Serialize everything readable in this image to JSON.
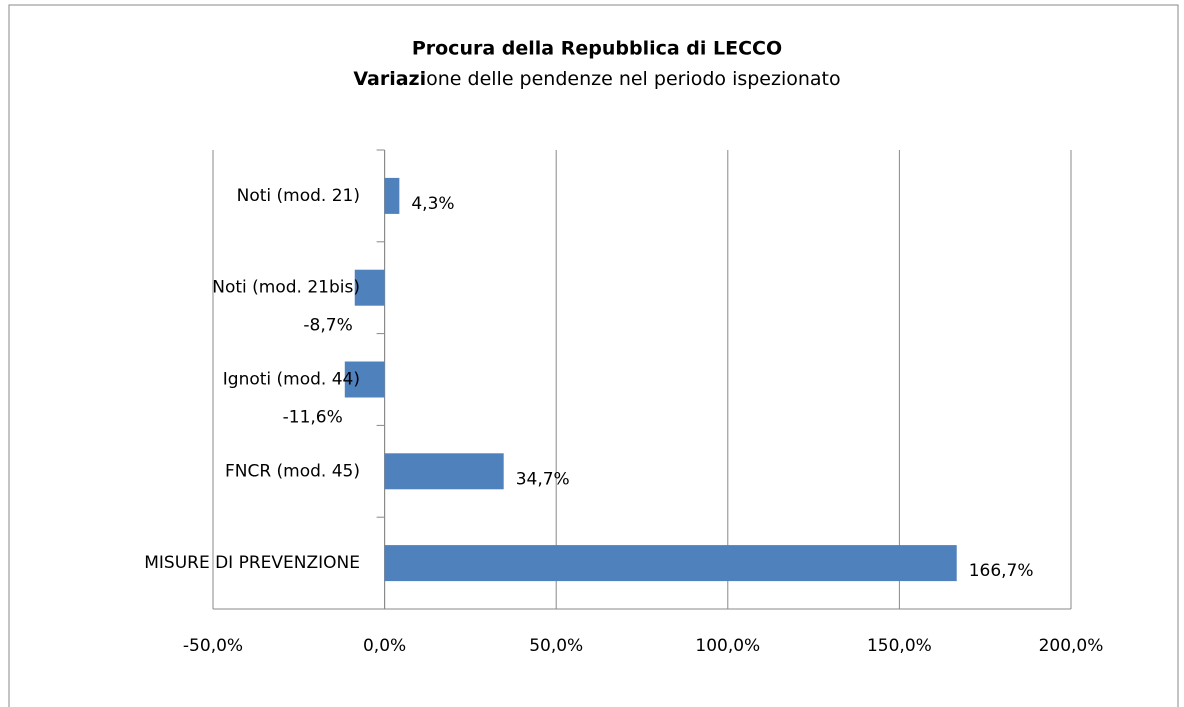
{
  "chart_data": {
    "type": "barh",
    "title": "Procura della Repubblica di LECCO",
    "subtitle": [
      "Variazi",
      "one delle pendenze nel periodo ispezionato"
    ],
    "categories": [
      "Noti (mod. 21)",
      "Noti (mod. 21bis)",
      "Ignoti (mod. 44)",
      "FNCR (mod. 45)",
      "MISURE DI PREVENZIONE"
    ],
    "values": [
      4.3,
      -8.7,
      -11.6,
      34.7,
      166.7
    ],
    "value_labels": [
      "4,3%",
      "-8,7%",
      "-11,6%",
      "34,7%",
      "166,7%"
    ],
    "color": "#4f81bd",
    "xlim": [
      -50,
      200
    ],
    "xticks": [
      {
        "value": -50,
        "label": "-50,0%"
      },
      {
        "value": 0,
        "label": "0,0%"
      },
      {
        "value": 50,
        "label": "50,0%"
      },
      {
        "value": 100,
        "label": "100,0%"
      },
      {
        "value": 150,
        "label": "150,0%"
      },
      {
        "value": 200,
        "label": "200,0%"
      }
    ],
    "grid": true
  }
}
